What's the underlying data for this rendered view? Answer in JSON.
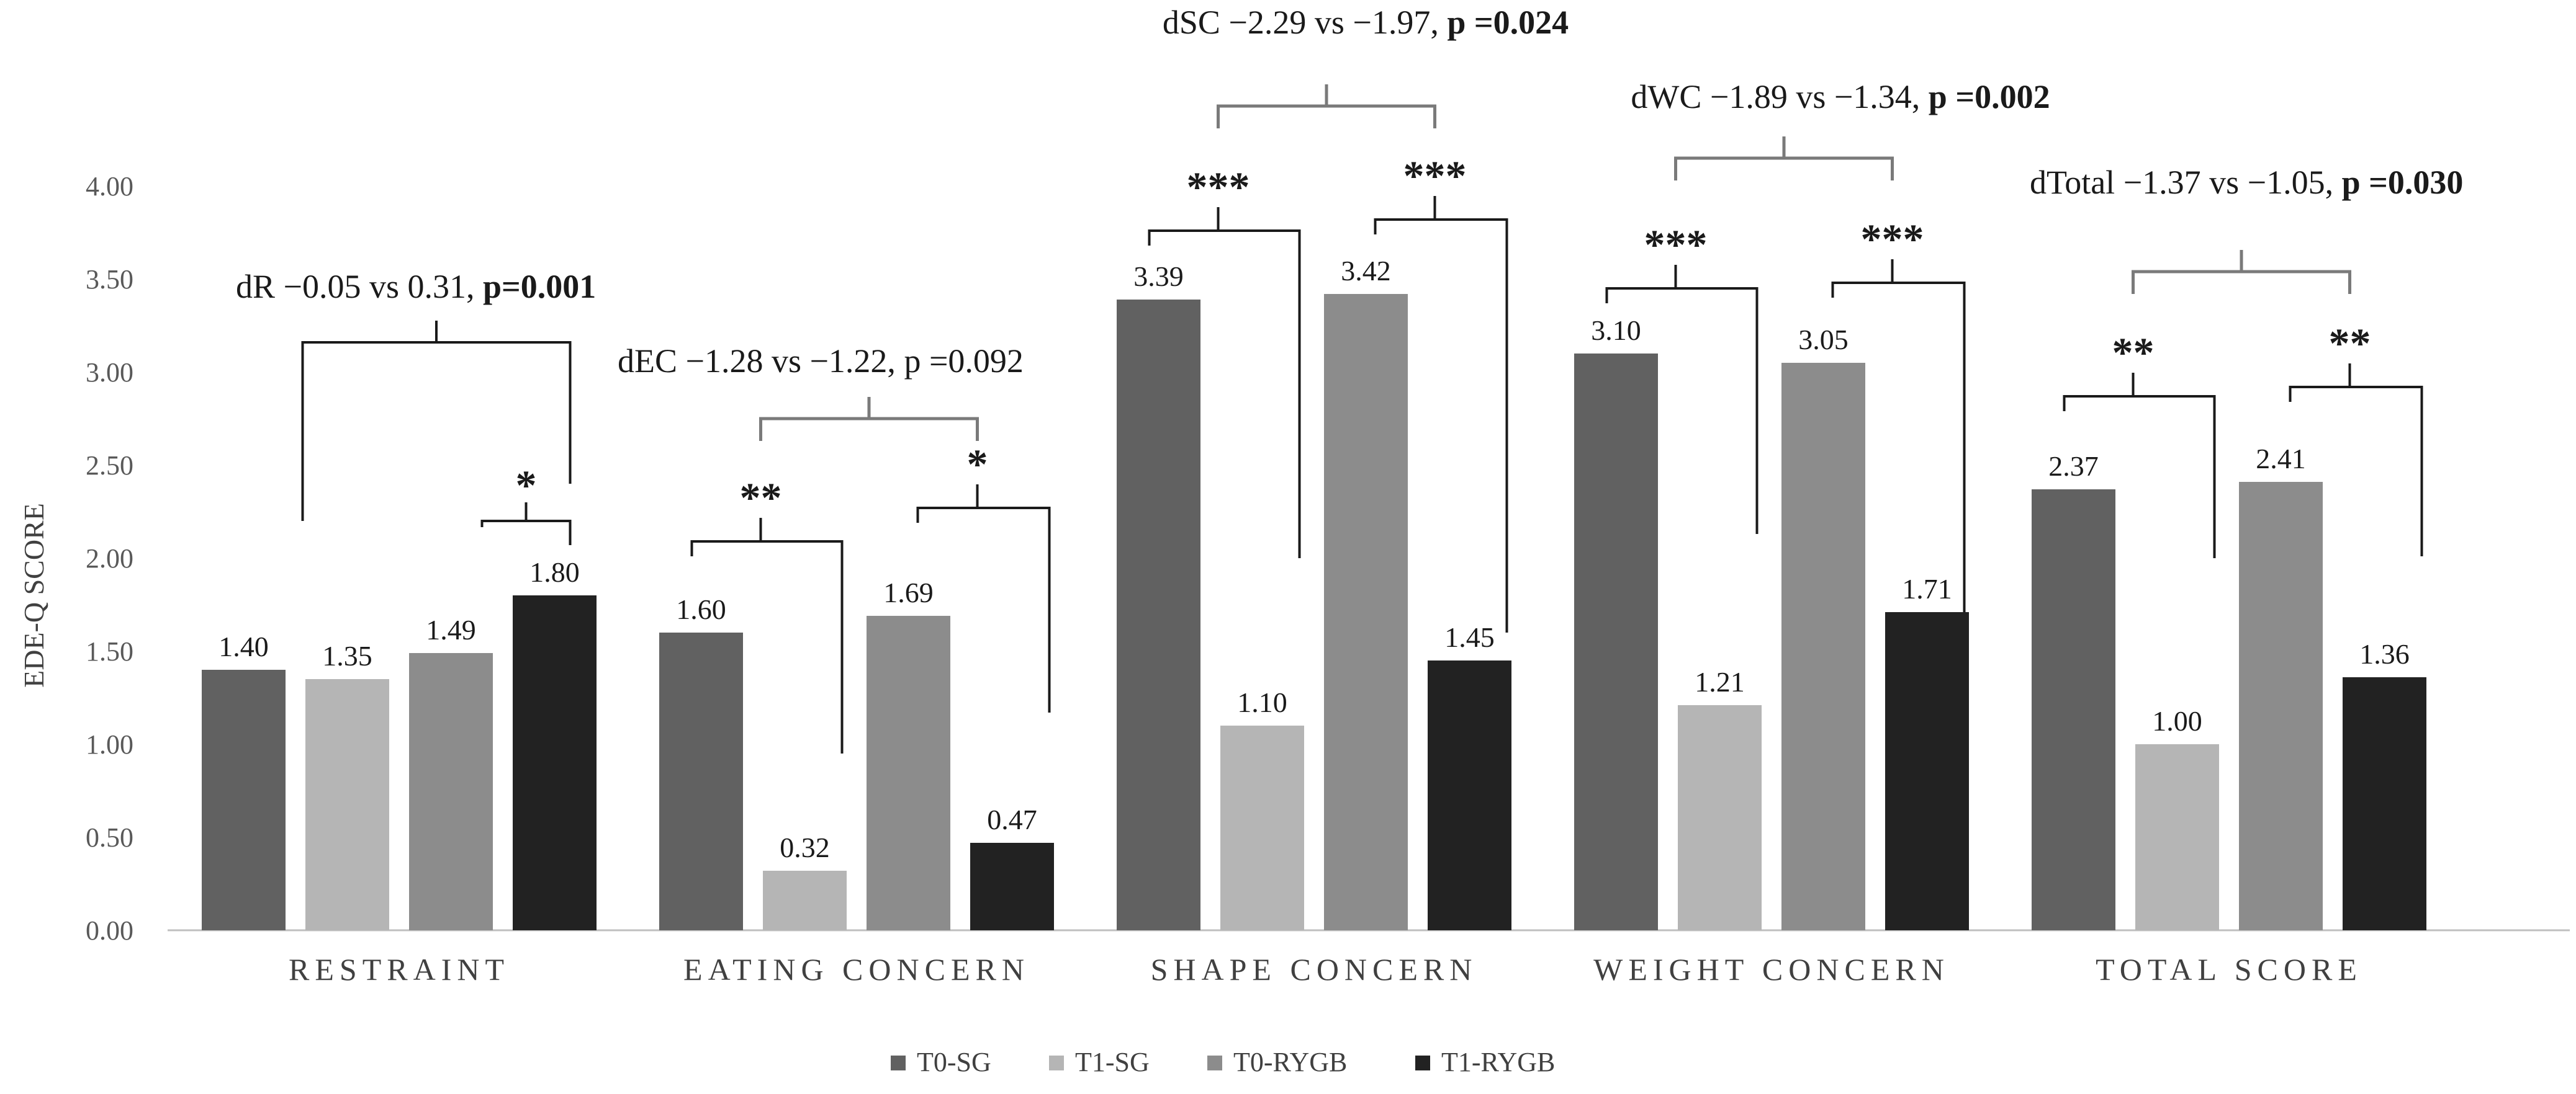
{
  "chart_data": {
    "type": "bar",
    "ylabel": "EDE-Q SCORE",
    "ylim": [
      0,
      4
    ],
    "yticks": [
      "0.00",
      "0.50",
      "1.00",
      "1.50",
      "2.00",
      "2.50",
      "3.00",
      "3.50",
      "4.00"
    ],
    "categories": [
      "RESTRAINT",
      "EATING CONCERN",
      "SHAPE CONCERN",
      "WEIGHT CONCERN",
      "TOTAL SCORE"
    ],
    "series": [
      {
        "name": "T0-SG",
        "color": "#616161",
        "values": [
          1.4,
          1.6,
          3.39,
          3.1,
          2.37
        ],
        "labels": [
          "1.40",
          "1.60",
          "3.39",
          "3.10",
          "2.37"
        ]
      },
      {
        "name": "T1-SG",
        "color": "#b5b5b5",
        "values": [
          1.35,
          0.32,
          1.1,
          1.21,
          1.0
        ],
        "labels": [
          "1.35",
          "0.32",
          "1.10",
          "1.21",
          "1.00"
        ]
      },
      {
        "name": "T0-RYGB",
        "color": "#8c8c8c",
        "values": [
          1.49,
          1.69,
          3.42,
          3.05,
          2.41
        ],
        "labels": [
          "1.49",
          "1.69",
          "3.42",
          "3.05",
          "2.41"
        ]
      },
      {
        "name": "T1-RYGB",
        "color": "#222222",
        "values": [
          1.8,
          0.47,
          1.45,
          1.71,
          1.36
        ],
        "labels": [
          "1.80",
          "0.47",
          "1.45",
          "1.71",
          "1.36"
        ]
      }
    ],
    "significance": [
      {
        "category": "RESTRAINT",
        "sg": "",
        "rygb": "*",
        "comparison": {
          "prefix": "dR −0.05 vs 0.31, ",
          "p": "p=0.001",
          "p_bold": true
        }
      },
      {
        "category": "EATING CONCERN",
        "sg": "**",
        "rygb": "*",
        "comparison": {
          "prefix": "dEC −1.28 vs −1.22, ",
          "p": "p =0.092",
          "p_bold": false
        }
      },
      {
        "category": "SHAPE CONCERN",
        "sg": "***",
        "rygb": "***",
        "comparison": {
          "prefix": "dSC −2.29 vs −1.97, ",
          "p": "p =0.024",
          "p_bold": true
        }
      },
      {
        "category": "WEIGHT CONCERN",
        "sg": "***",
        "rygb": "***",
        "comparison": {
          "prefix": "dWC −1.89 vs −1.34, ",
          "p": "p =0.002",
          "p_bold": true
        }
      },
      {
        "category": "TOTAL SCORE",
        "sg": "**",
        "rygb": "**",
        "comparison": {
          "prefix": "dTotal −1.37 vs −1.05, ",
          "p": "p =0.030",
          "p_bold": true
        }
      }
    ],
    "legend_position": "bottom-center",
    "grid": false
  }
}
